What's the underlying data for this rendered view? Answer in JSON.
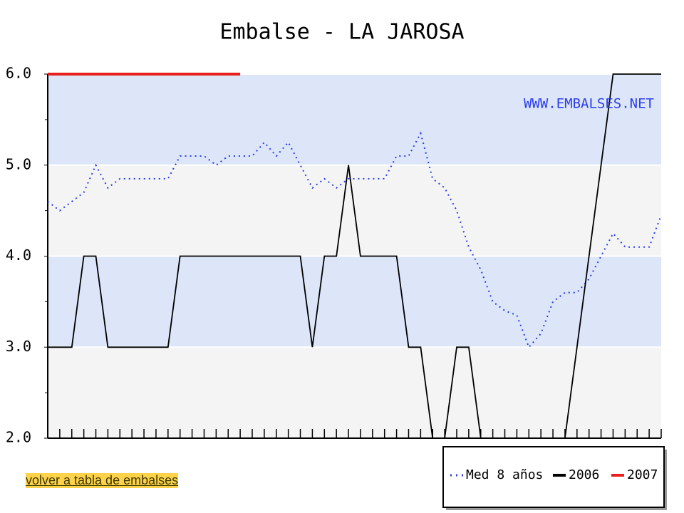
{
  "chart_data": {
    "type": "line",
    "title": "Embalse - LA JAROSA",
    "watermark": "WWW.EMBALSES.NET",
    "categories": [
      null,
      null,
      null,
      null,
      null,
      null,
      null,
      null,
      null,
      null,
      null,
      null,
      null,
      null,
      null,
      null,
      null,
      null,
      null,
      null,
      null,
      null,
      null,
      null,
      null,
      null,
      null,
      null,
      null,
      null,
      null,
      null,
      null,
      null,
      null,
      null,
      null,
      null,
      null,
      null,
      null,
      null,
      null,
      null,
      null,
      null,
      null,
      null,
      null,
      null,
      null,
      null
    ],
    "series": [
      {
        "name": "Med 8 años",
        "color": "#2c3cf0",
        "style": "dotted",
        "values": [
          4.6,
          4.5,
          4.6,
          4.7,
          5.0,
          4.75,
          4.85,
          4.85,
          4.85,
          4.85,
          4.85,
          5.1,
          5.1,
          5.1,
          5.0,
          5.1,
          5.1,
          5.1,
          5.25,
          5.1,
          5.25,
          5.0,
          4.75,
          4.85,
          4.75,
          4.85,
          4.85,
          4.85,
          4.85,
          5.1,
          5.1,
          5.35,
          4.85,
          4.75,
          4.5,
          4.1,
          3.85,
          3.5,
          3.4,
          3.35,
          3.0,
          3.15,
          3.5,
          3.6,
          3.6,
          3.75,
          4.0,
          4.25,
          4.1,
          4.1,
          4.1,
          4.45
        ]
      },
      {
        "name": "2006",
        "color": "#000000",
        "style": "solid",
        "values": [
          3,
          3,
          3,
          4,
          4,
          3,
          3,
          3,
          3,
          3,
          3,
          4,
          4,
          4,
          4,
          4,
          4,
          4,
          4,
          4,
          4,
          4,
          3,
          4,
          4,
          5,
          4,
          4,
          4,
          4,
          3,
          3,
          2,
          2,
          3,
          3,
          2,
          2,
          2,
          2,
          2,
          2,
          2,
          2,
          3,
          4,
          5,
          6,
          6,
          6,
          6,
          6
        ]
      },
      {
        "name": "2007",
        "color": "#e8201c",
        "style": "thick",
        "values": [
          6,
          6,
          6,
          6,
          6,
          6,
          6,
          6,
          6,
          6,
          6,
          6,
          6,
          6,
          6,
          6,
          6,
          null,
          null,
          null,
          null,
          null,
          null,
          null,
          null,
          null,
          null,
          null,
          null,
          null,
          null,
          null,
          null,
          null,
          null,
          null,
          null,
          null,
          null,
          null,
          null,
          null,
          null,
          null,
          null,
          null,
          null,
          null,
          null,
          null,
          null,
          null
        ]
      }
    ],
    "ylim": [
      2,
      6
    ],
    "yticks": [
      {
        "value": 2,
        "label": "2.0"
      },
      {
        "value": 3,
        "label": "3.0"
      },
      {
        "value": 4,
        "label": "4.0"
      },
      {
        "value": 5,
        "label": "5.0"
      },
      {
        "value": 6,
        "label": "6.0"
      }
    ],
    "band_colors": [
      "#f4f4f4",
      "#dce6f8"
    ],
    "link": "volver a tabla de embalses"
  }
}
